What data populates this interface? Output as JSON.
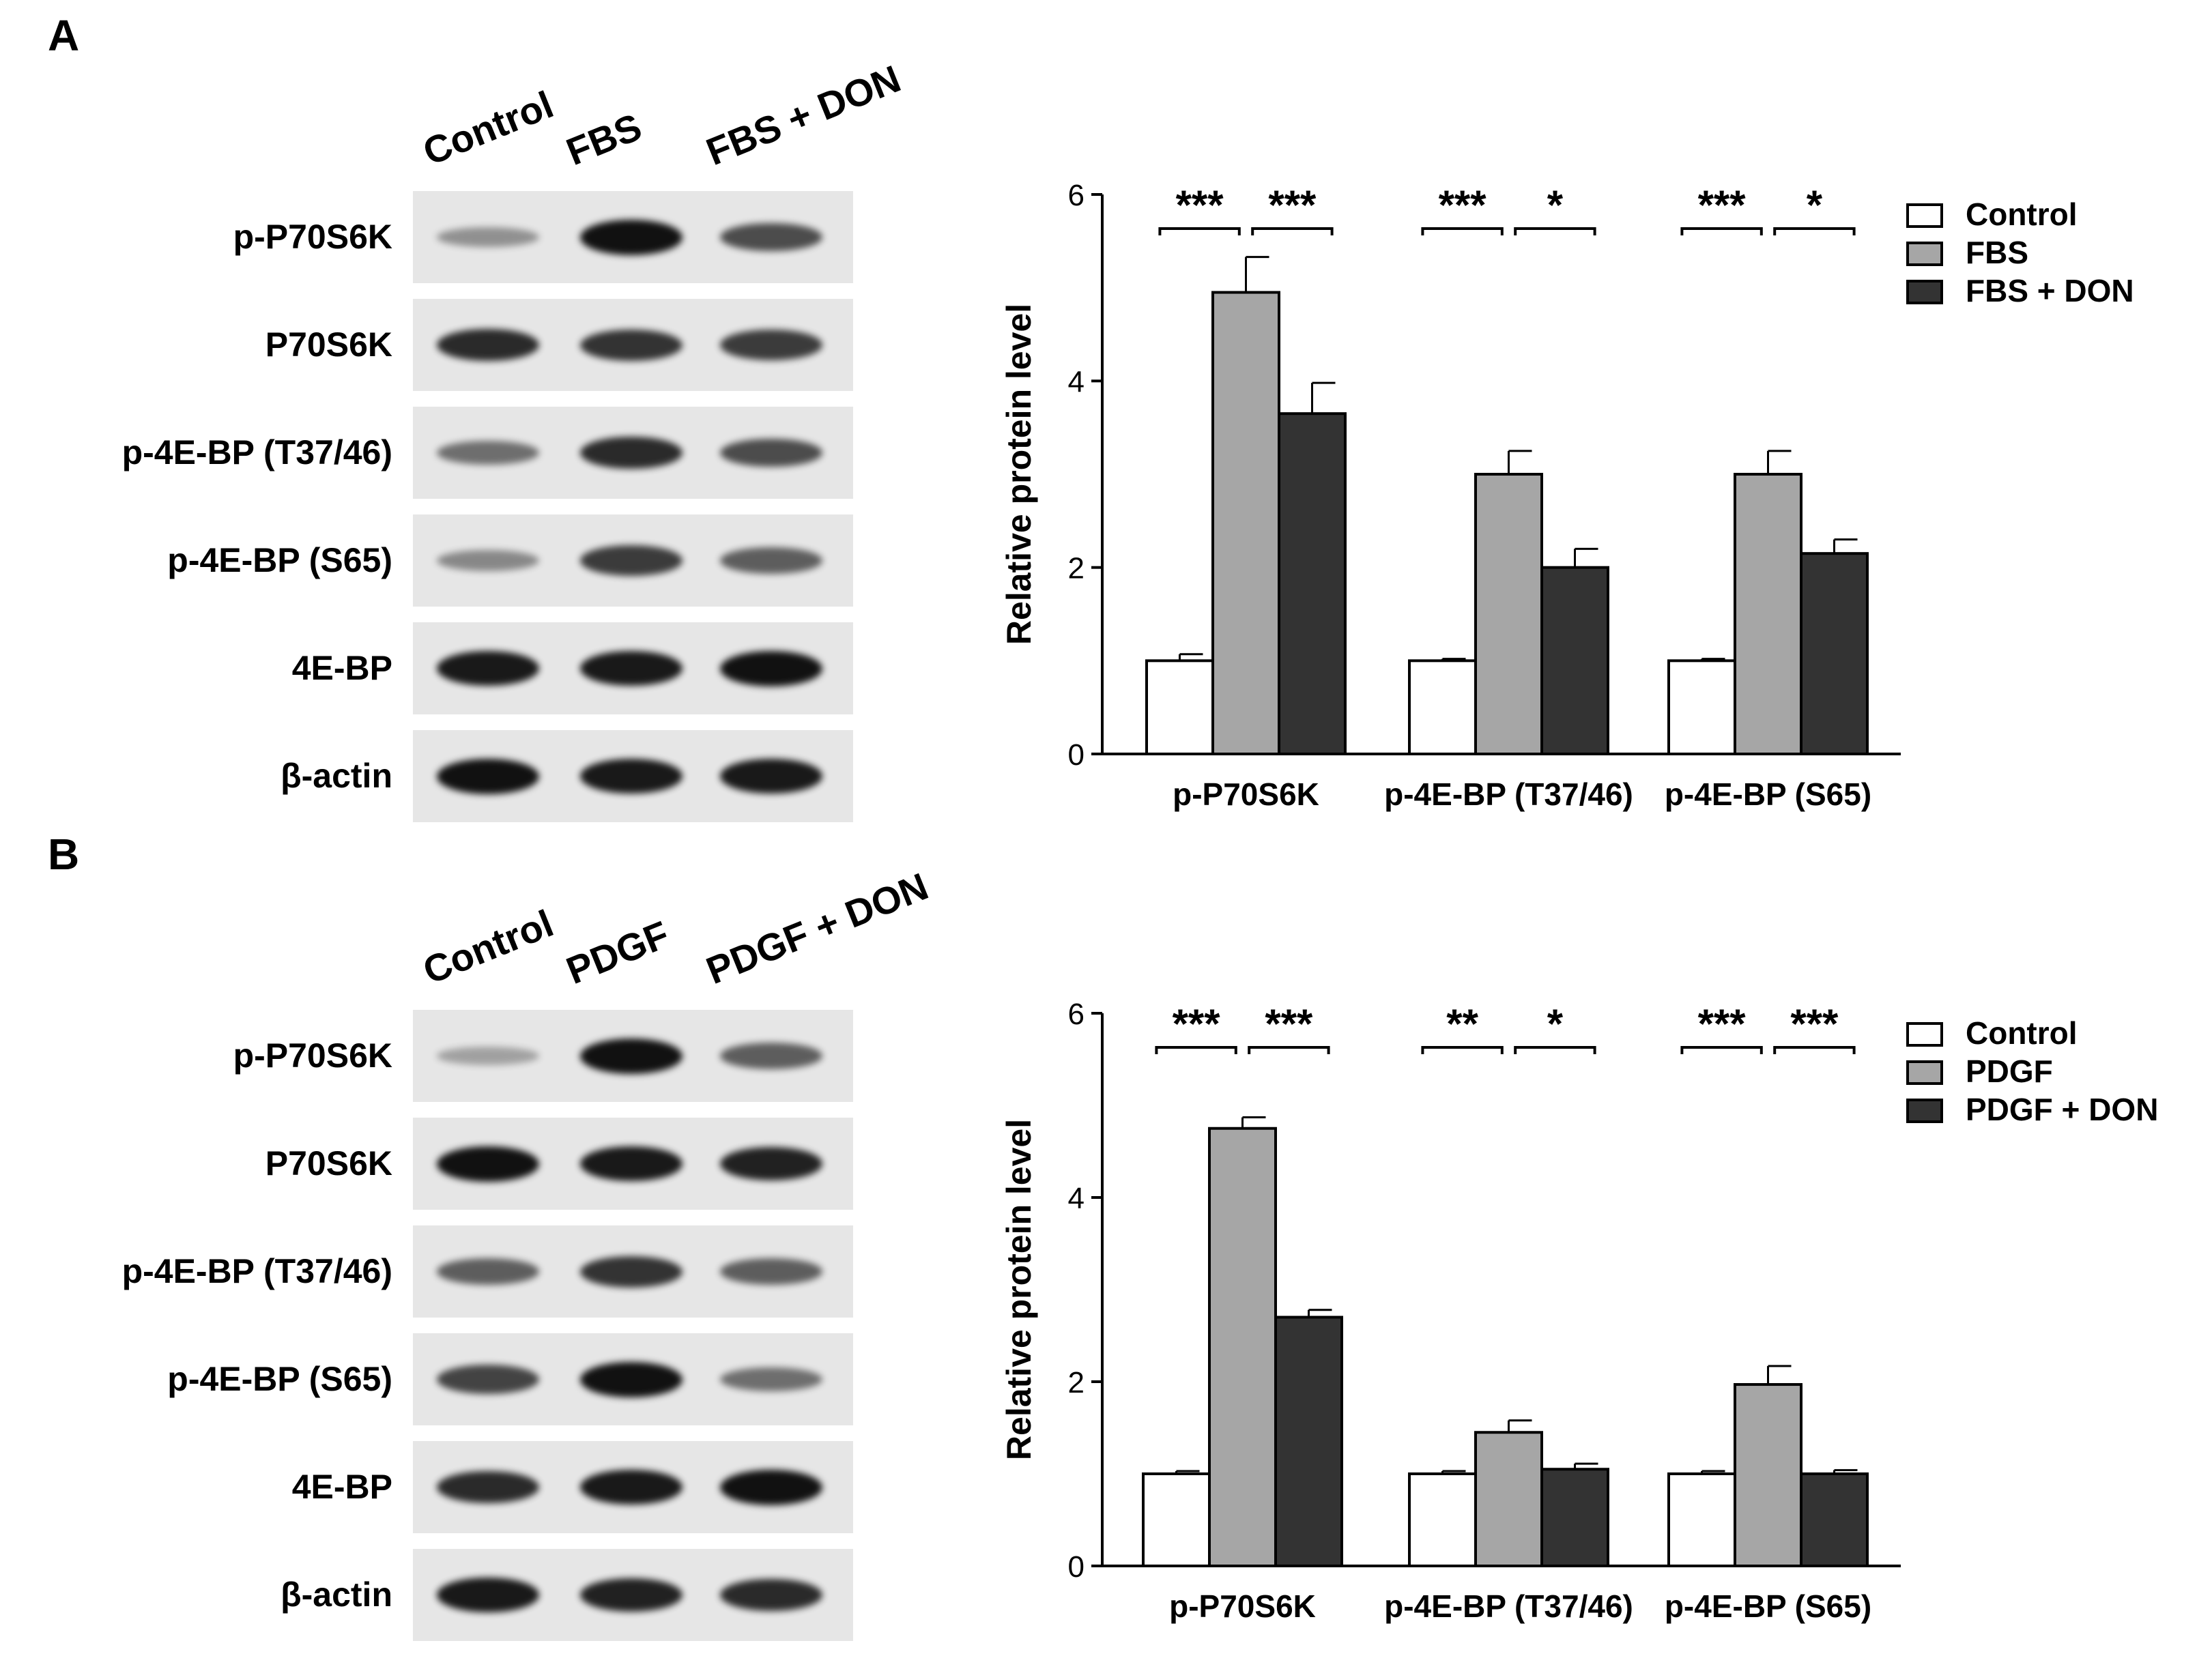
{
  "panels": [
    {
      "letter": "A",
      "lanes": [
        "Control",
        "FBS",
        "FBS + DON"
      ],
      "blot_rows": [
        "p-P70S6K",
        "P70S6K",
        "p-4E-BP (T37/46)",
        "p-4E-BP (S65)",
        "4E-BP",
        "β-actin"
      ],
      "band_intensity": [
        [
          0.25,
          1.0,
          0.65
        ],
        [
          0.85,
          0.8,
          0.75
        ],
        [
          0.45,
          0.85,
          0.65
        ],
        [
          0.3,
          0.75,
          0.55
        ],
        [
          0.95,
          0.95,
          1.0
        ],
        [
          1.0,
          0.95,
          0.95
        ]
      ]
    },
    {
      "letter": "B",
      "lanes": [
        "Control",
        "PDGF",
        "PDGF + DON"
      ],
      "blot_rows": [
        "p-P70S6K",
        "P70S6K",
        "p-4E-BP (T37/46)",
        "p-4E-BP (S65)",
        "4E-BP",
        "β-actin"
      ],
      "band_intensity": [
        [
          0.15,
          1.0,
          0.55
        ],
        [
          1.0,
          0.95,
          0.9
        ],
        [
          0.55,
          0.8,
          0.55
        ],
        [
          0.7,
          1.0,
          0.45
        ],
        [
          0.85,
          0.95,
          1.0
        ],
        [
          0.95,
          0.9,
          0.85
        ]
      ]
    }
  ],
  "chart_data": [
    {
      "type": "bar",
      "title": "",
      "xlabel": "",
      "ylabel": "Relative protein level",
      "ylim": [
        0,
        6
      ],
      "yticks": [
        "0",
        "2",
        "4",
        "6"
      ],
      "categories": [
        "p-P70S6K",
        "p-4E-BP (T37/46)",
        "p-4E-BP (S65)"
      ],
      "series": [
        {
          "name": "Control",
          "values": [
            1.0,
            1.0,
            1.0
          ],
          "errors": [
            0.07,
            0.02,
            0.02
          ],
          "color": "#ffffff"
        },
        {
          "name": "FBS",
          "values": [
            4.95,
            3.0,
            3.0
          ],
          "errors": [
            0.38,
            0.25,
            0.25
          ],
          "color": "#a6a6a6"
        },
        {
          "name": "FBS + DON",
          "values": [
            3.65,
            2.0,
            2.15
          ],
          "errors": [
            0.33,
            0.2,
            0.15
          ],
          "color": "#333333"
        }
      ],
      "significance": [
        [
          "***",
          "***"
        ],
        [
          "***",
          "*"
        ],
        [
          "***",
          "*"
        ]
      ],
      "legend_position": "top-right"
    },
    {
      "type": "bar",
      "title": "",
      "xlabel": "",
      "ylabel": "Relative protein level",
      "ylim": [
        0,
        6
      ],
      "yticks": [
        "0",
        "2",
        "4",
        "6"
      ],
      "categories": [
        "p-P70S6K",
        "p-4E-BP (T37/46)",
        "p-4E-BP (S65)"
      ],
      "series": [
        {
          "name": "Control",
          "values": [
            1.0,
            1.0,
            1.0
          ],
          "errors": [
            0.03,
            0.03,
            0.03
          ],
          "color": "#ffffff"
        },
        {
          "name": "PDGF",
          "values": [
            4.75,
            1.45,
            1.97
          ],
          "errors": [
            0.12,
            0.13,
            0.2
          ],
          "color": "#a6a6a6"
        },
        {
          "name": "PDGF + DON",
          "values": [
            2.7,
            1.05,
            1.0
          ],
          "errors": [
            0.08,
            0.06,
            0.04
          ],
          "color": "#333333"
        }
      ],
      "significance": [
        [
          "***",
          "***"
        ],
        [
          "**",
          "*"
        ],
        [
          "***",
          "***"
        ]
      ],
      "legend_position": "top-right"
    }
  ]
}
